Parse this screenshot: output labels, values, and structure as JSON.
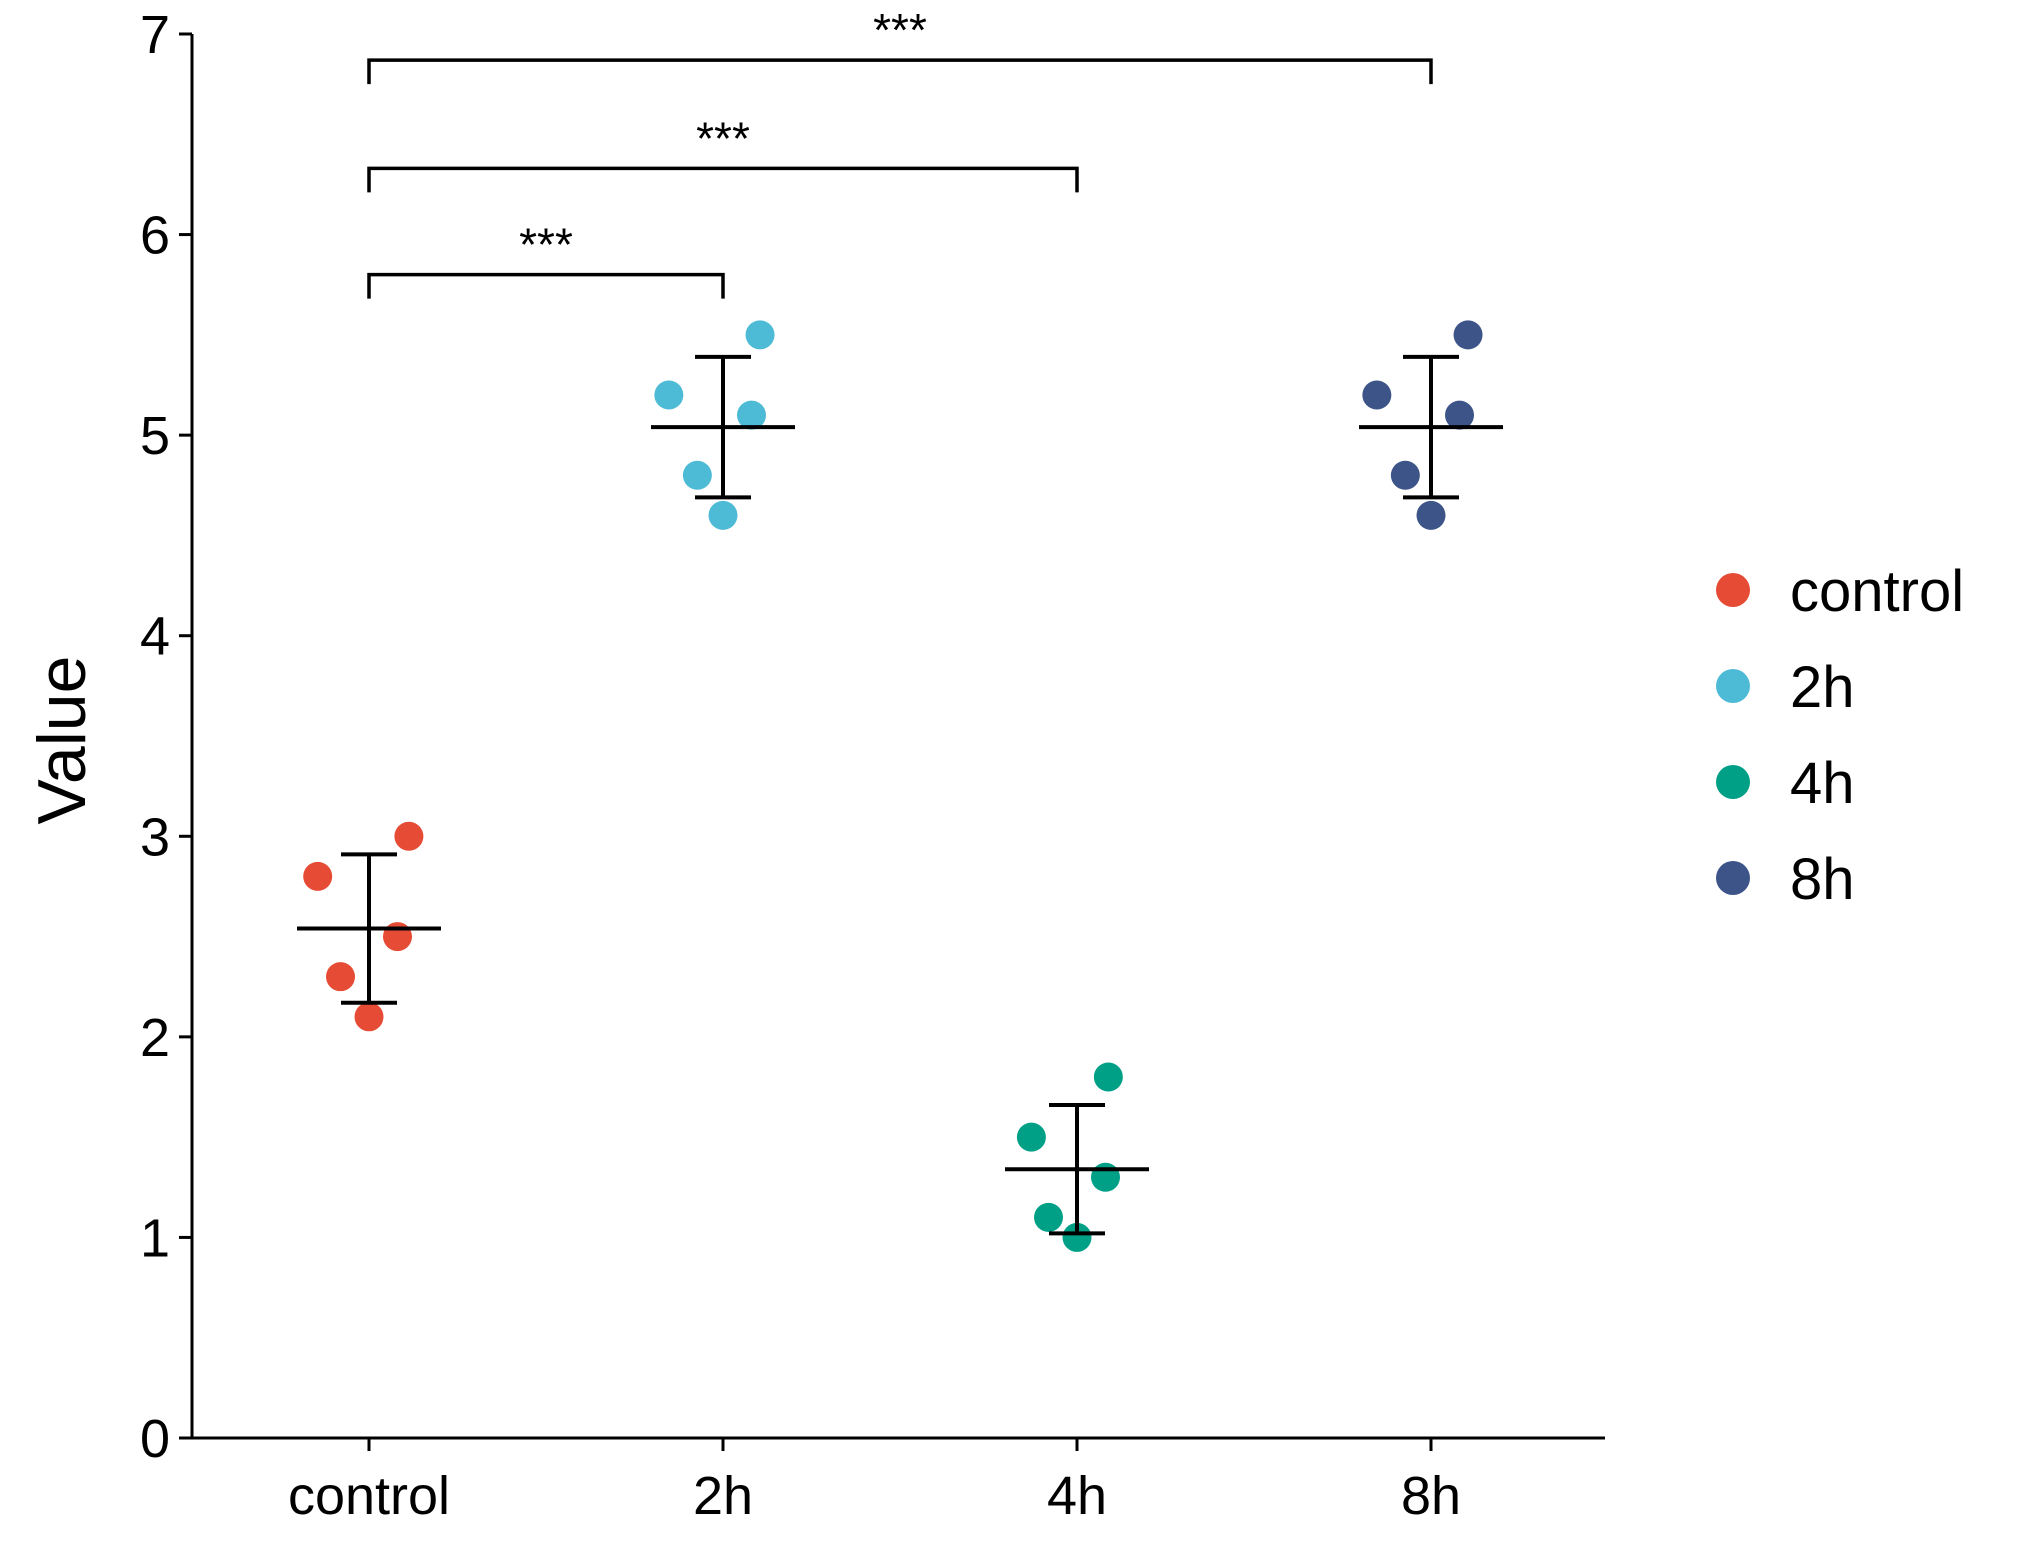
{
  "chart_data": {
    "type": "scatter",
    "subtype": "dot-plot-with-mean-sd",
    "title": "",
    "xlabel": "",
    "ylabel": "Value",
    "ylim": [
      0,
      7
    ],
    "yticks": [
      0,
      1,
      2,
      3,
      4,
      5,
      6,
      7
    ],
    "categories": [
      "control",
      "2h",
      "4h",
      "8h"
    ],
    "grid": false,
    "legend_position": "right",
    "series": [
      {
        "name": "control",
        "color": "#E64B35",
        "points": [
          {
            "jitter": -0.18,
            "y": 2.8
          },
          {
            "jitter": -0.1,
            "y": 2.3
          },
          {
            "jitter": 0.0,
            "y": 2.1
          },
          {
            "jitter": 0.1,
            "y": 2.5
          },
          {
            "jitter": 0.14,
            "y": 3.0
          }
        ],
        "mean": 2.54,
        "sd": 0.37
      },
      {
        "name": "2h",
        "color": "#4DBBD5",
        "points": [
          {
            "jitter": -0.19,
            "y": 5.2
          },
          {
            "jitter": -0.09,
            "y": 4.8
          },
          {
            "jitter": 0.0,
            "y": 4.6
          },
          {
            "jitter": 0.1,
            "y": 5.1
          },
          {
            "jitter": 0.13,
            "y": 5.5
          }
        ],
        "mean": 5.04,
        "sd": 0.35
      },
      {
        "name": "4h",
        "color": "#00A087",
        "points": [
          {
            "jitter": -0.16,
            "y": 1.5
          },
          {
            "jitter": -0.1,
            "y": 1.1
          },
          {
            "jitter": 0.0,
            "y": 1.0
          },
          {
            "jitter": 0.1,
            "y": 1.3
          },
          {
            "jitter": 0.11,
            "y": 1.8
          }
        ],
        "mean": 1.34,
        "sd": 0.32
      },
      {
        "name": "8h",
        "color": "#3C5488",
        "points": [
          {
            "jitter": -0.19,
            "y": 5.2
          },
          {
            "jitter": -0.09,
            "y": 4.8
          },
          {
            "jitter": 0.0,
            "y": 4.6
          },
          {
            "jitter": 0.1,
            "y": 5.1
          },
          {
            "jitter": 0.13,
            "y": 5.5
          }
        ],
        "mean": 5.04,
        "sd": 0.35
      }
    ],
    "significance": [
      {
        "from": "control",
        "to": "2h",
        "label": "***",
        "y": 5.8
      },
      {
        "from": "control",
        "to": "4h",
        "label": "***",
        "y": 6.33
      },
      {
        "from": "control",
        "to": "8h",
        "label": "***",
        "y": 6.87
      }
    ]
  }
}
